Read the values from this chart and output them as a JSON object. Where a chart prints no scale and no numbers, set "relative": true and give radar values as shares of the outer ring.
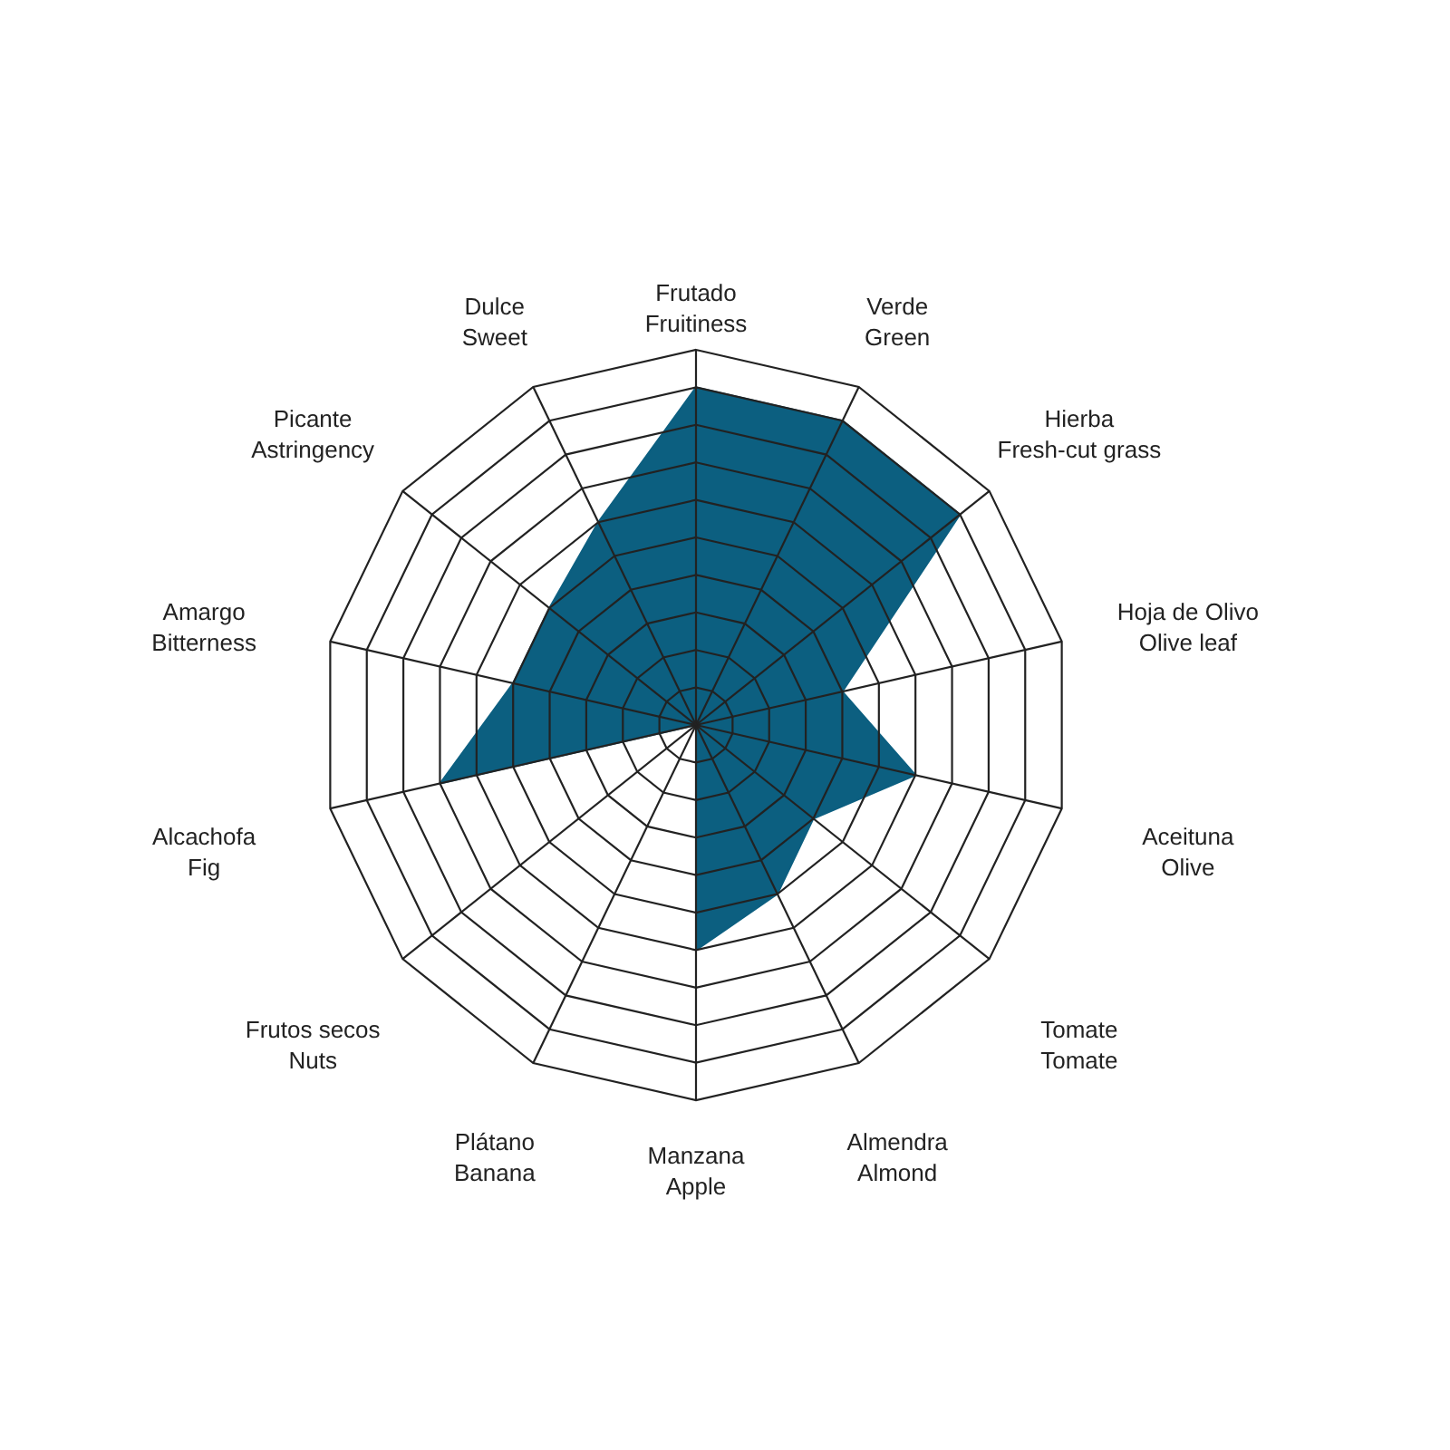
{
  "chart_data": {
    "type": "radar",
    "relative": true,
    "grid": true,
    "categories": [
      "Frutado\nFruitiness",
      "Verde\nGreen",
      "Hierba\nFresh-cut grass",
      "Hoja de Olivo\nOlive leaf",
      "Aceituna\nOlive",
      "Tomate\nTomate",
      "Almendra\nAlmond",
      "Manzana\nApple",
      "Plátano\nBanana",
      "Frutos secos\nNuts",
      "Alcachofa\nFig",
      "Amargo\nBitterness",
      "Picante\nAstringency",
      "Dulce\nSweet"
    ],
    "series": [
      {
        "color": "#0c5f80",
        "values": [
          0.9,
          0.9,
          0.9,
          0.4,
          0.6,
          0.4,
          0.5,
          0.6,
          0,
          0,
          0.7,
          0.5,
          0.5,
          0.6
        ]
      }
    ]
  }
}
